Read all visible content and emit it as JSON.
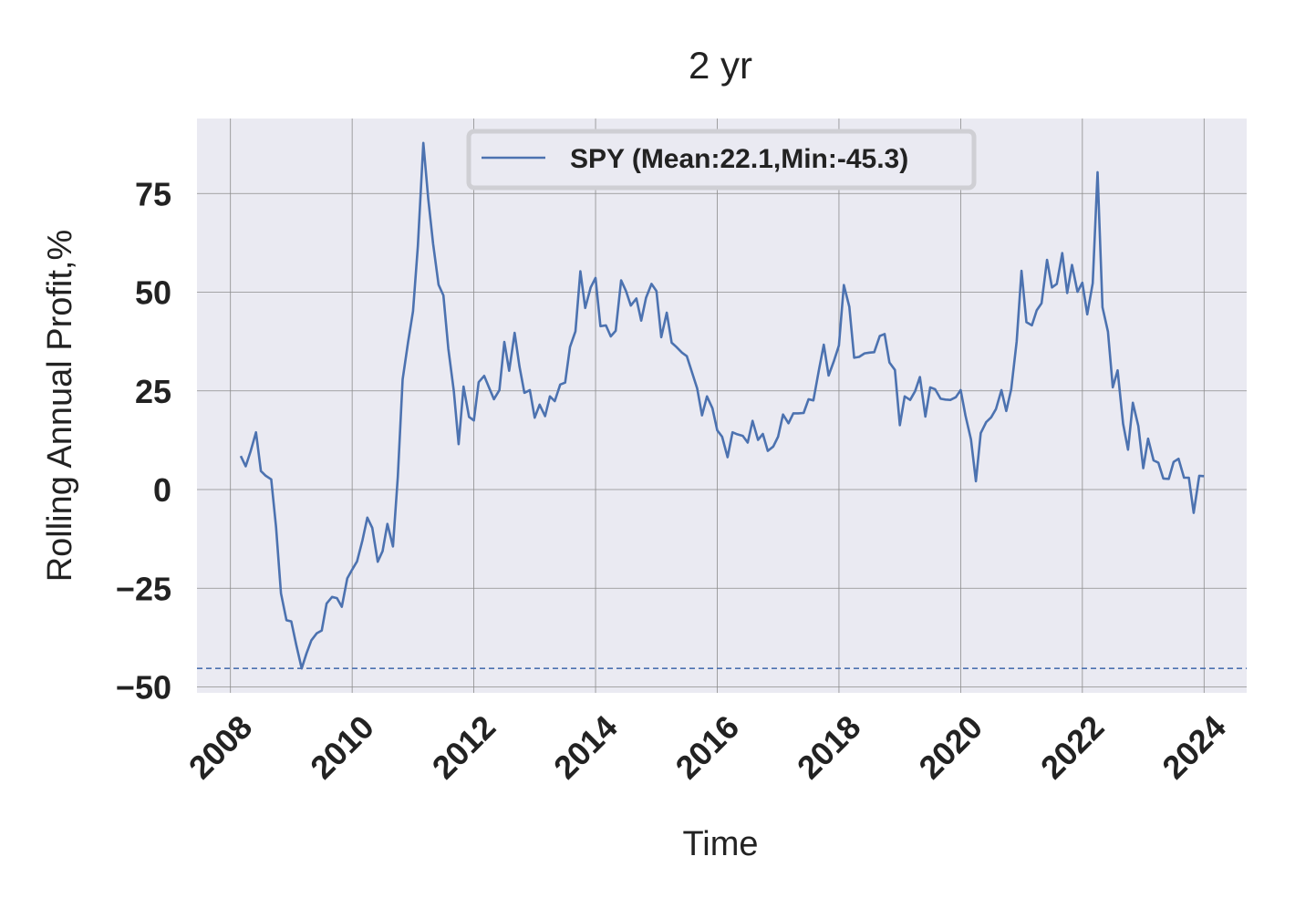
{
  "chart_data": {
    "type": "line",
    "title": "2 yr",
    "xlabel": "Time",
    "ylabel": "Rolling Annual Profit,%",
    "xlim": [
      2007.45,
      2024.7
    ],
    "ylim": [
      -51.5,
      94
    ],
    "x_ticks": [
      "2008",
      "2010",
      "2012",
      "2014",
      "2016",
      "2018",
      "2020",
      "2022",
      "2024"
    ],
    "y_ticks": [
      {
        "value": 75,
        "label": "75"
      },
      {
        "value": 50,
        "label": "50"
      },
      {
        "value": 25,
        "label": "25"
      },
      {
        "value": 0,
        "label": "0"
      },
      {
        "value": -25,
        "label": "−25"
      },
      {
        "value": -50,
        "label": "−50"
      }
    ],
    "grid": true,
    "legend_position": "top-center",
    "colors": {
      "line": "#4c72b0",
      "plot_bg": "#eaeaf2",
      "grid": "#8c8c8c"
    },
    "reference_line": {
      "y": -45.3,
      "style": "dashed"
    },
    "series": [
      {
        "name": "SPY (Mean:22.1,Min:-45.3)",
        "x": [
          2008.17,
          2008.25,
          2008.33,
          2008.42,
          2008.5,
          2008.58,
          2008.67,
          2008.75,
          2008.83,
          2008.92,
          2009.0,
          2009.08,
          2009.17,
          2009.25,
          2009.33,
          2009.42,
          2009.5,
          2009.58,
          2009.67,
          2009.75,
          2009.83,
          2009.92,
          2010.0,
          2010.08,
          2010.17,
          2010.25,
          2010.33,
          2010.42,
          2010.5,
          2010.58,
          2010.67,
          2010.75,
          2010.83,
          2010.92,
          2011.0,
          2011.08,
          2011.17,
          2011.25,
          2011.33,
          2011.42,
          2011.5,
          2011.58,
          2011.67,
          2011.75,
          2011.83,
          2011.92,
          2012.0,
          2012.08,
          2012.17,
          2012.25,
          2012.33,
          2012.42,
          2012.5,
          2012.58,
          2012.67,
          2012.75,
          2012.83,
          2012.92,
          2013.0,
          2013.08,
          2013.17,
          2013.25,
          2013.33,
          2013.42,
          2013.5,
          2013.58,
          2013.67,
          2013.75,
          2013.83,
          2013.92,
          2014.0,
          2014.08,
          2014.17,
          2014.25,
          2014.33,
          2014.42,
          2014.5,
          2014.58,
          2014.67,
          2014.75,
          2014.83,
          2014.92,
          2015.0,
          2015.08,
          2015.17,
          2015.25,
          2015.33,
          2015.42,
          2015.5,
          2015.58,
          2015.67,
          2015.75,
          2015.83,
          2015.92,
          2016.0,
          2016.08,
          2016.17,
          2016.25,
          2016.33,
          2016.42,
          2016.5,
          2016.58,
          2016.67,
          2016.75,
          2016.83,
          2016.92,
          2017.0,
          2017.08,
          2017.17,
          2017.25,
          2017.33,
          2017.42,
          2017.5,
          2017.58,
          2017.67,
          2017.75,
          2017.83,
          2017.92,
          2018.0,
          2018.08,
          2018.17,
          2018.25,
          2018.33,
          2018.42,
          2018.5,
          2018.58,
          2018.67,
          2018.75,
          2018.83,
          2018.92,
          2019.0,
          2019.08,
          2019.17,
          2019.25,
          2019.33,
          2019.42,
          2019.5,
          2019.58,
          2019.67,
          2019.75,
          2019.83,
          2019.92,
          2020.0,
          2020.08,
          2020.17,
          2020.25,
          2020.33,
          2020.42,
          2020.5,
          2020.58,
          2020.67,
          2020.75,
          2020.83,
          2020.92,
          2021.0,
          2021.08,
          2021.17,
          2021.25,
          2021.33,
          2021.42,
          2021.5,
          2021.58,
          2021.67,
          2021.75,
          2021.83,
          2021.92,
          2022.0,
          2022.08,
          2022.17,
          2022.25,
          2022.33,
          2022.42,
          2022.5,
          2022.58,
          2022.67,
          2022.75,
          2022.83,
          2022.92,
          2023.0,
          2023.08,
          2023.17,
          2023.25,
          2023.33,
          2023.42,
          2023.5,
          2023.58,
          2023.67,
          2023.75,
          2023.83,
          2023.92,
          2024.0
        ],
        "y": [
          8.5,
          5.9,
          9.6,
          14.5,
          4.7,
          3.5,
          2.6,
          -9.5,
          -26.3,
          -33.1,
          -33.4,
          -39.3,
          -45.3,
          -41.5,
          -38.2,
          -36.4,
          -35.7,
          -28.9,
          -27.2,
          -27.5,
          -29.7,
          -22.5,
          -20.3,
          -18.2,
          -12.8,
          -7.1,
          -9.7,
          -18.3,
          -15.6,
          -8.7,
          -14.4,
          3.2,
          27.9,
          37.4,
          45.2,
          61.7,
          87.8,
          73.6,
          62.3,
          51.9,
          49.2,
          35.7,
          25.0,
          11.5,
          26.1,
          18.4,
          17.5,
          27.2,
          28.8,
          25.8,
          22.9,
          25.2,
          37.4,
          30.1,
          39.7,
          31.2,
          24.5,
          25.2,
          18.2,
          21.5,
          18.6,
          23.6,
          22.4,
          26.6,
          27.1,
          36.1,
          40.1,
          55.3,
          46.0,
          51.2,
          53.6,
          41.4,
          41.6,
          38.8,
          40.2,
          53.0,
          50.3,
          46.6,
          48.4,
          42.8,
          48.6,
          52.1,
          50.3,
          38.6,
          44.8,
          37.2,
          36.1,
          34.7,
          33.8,
          29.9,
          25.6,
          18.8,
          23.6,
          20.6,
          15.0,
          13.4,
          8.2,
          14.5,
          14.0,
          13.6,
          11.9,
          17.4,
          12.6,
          14.1,
          9.8,
          10.9,
          13.4,
          19.0,
          16.8,
          19.3,
          19.3,
          19.4,
          22.9,
          22.6,
          30.2,
          36.7,
          28.9,
          32.7,
          36.5,
          51.8,
          46.3,
          33.4,
          33.6,
          34.5,
          34.7,
          34.8,
          38.9,
          39.4,
          32.2,
          30.3,
          16.3,
          23.6,
          22.7,
          24.9,
          28.5,
          18.5,
          25.9,
          25.4,
          23.0,
          22.8,
          22.7,
          23.4,
          25.2,
          18.7,
          12.7,
          2.1,
          14.3,
          17.1,
          18.3,
          20.4,
          25.2,
          19.9,
          25.4,
          37.5,
          55.4,
          42.4,
          41.6,
          45.4,
          47.2,
          58.2,
          51.2,
          52.1,
          59.9,
          49.8,
          56.9,
          50.1,
          52.4,
          44.4,
          52.3,
          80.4,
          46.2,
          40.0,
          25.9,
          30.2,
          16.7,
          10.1,
          22.0,
          16.1,
          5.4,
          12.9,
          7.4,
          6.8,
          2.8,
          2.7,
          7.0,
          7.8,
          3.0,
          3.0,
          -5.9,
          3.5,
          3.4
        ]
      }
    ]
  }
}
